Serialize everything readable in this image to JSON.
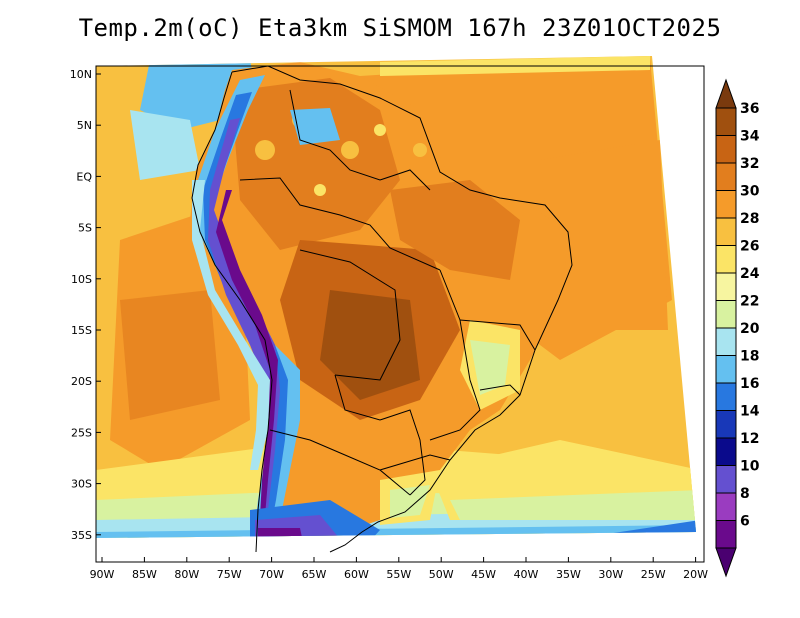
{
  "title": "Temp.2m(oC) Eta3km SiSMOM 167h 23Z01OCT2025",
  "map": {
    "lat_labels": [
      "10N",
      "5N",
      "EQ",
      "5S",
      "10S",
      "15S",
      "20S",
      "25S",
      "30S",
      "35S"
    ],
    "lon_labels": [
      "90W",
      "85W",
      "80W",
      "75W",
      "70W",
      "65W",
      "60W",
      "55W",
      "50W",
      "45W",
      "40W",
      "35W",
      "30W",
      "25W",
      "20W"
    ]
  },
  "colorbar": {
    "levels": [
      "36",
      "34",
      "32",
      "30",
      "28",
      "26",
      "24",
      "22",
      "20",
      "18",
      "16",
      "14",
      "12",
      "10",
      "8",
      "6"
    ],
    "colors": [
      "#7a3a0e",
      "#a0500f",
      "#c86414",
      "#e27e1e",
      "#f59b2a",
      "#f8c040",
      "#fbe466",
      "#f7f5a0",
      "#d8f2a0",
      "#a8e4f0",
      "#64c0f0",
      "#2878e0",
      "#1838b8",
      "#0a0a8c",
      "#6450d0",
      "#9a3cc0",
      "#6a0a8c",
      "#4a0070"
    ]
  }
}
